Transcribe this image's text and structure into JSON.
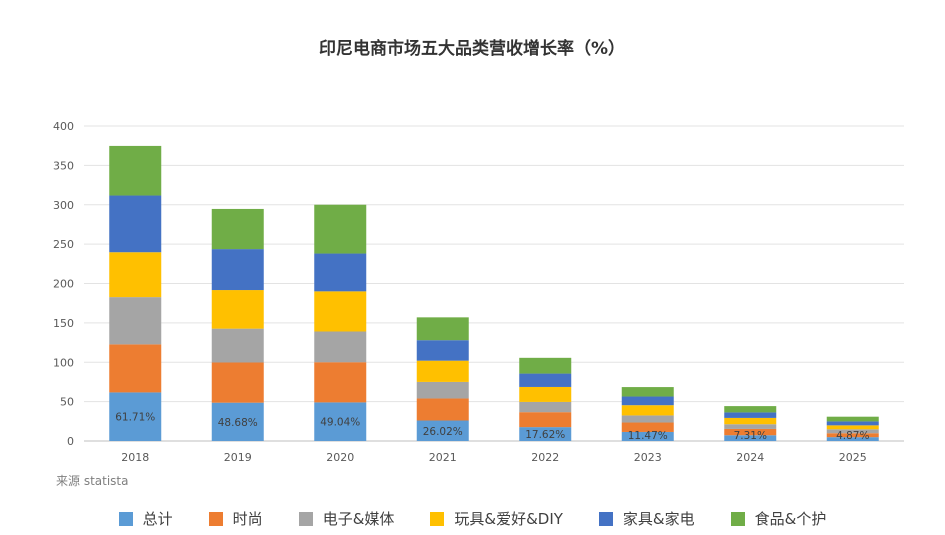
{
  "chart_data": {
    "type": "bar",
    "stacked": true,
    "title": "印尼电商市场五大品类营收增长率（%）",
    "categories": [
      "2018",
      "2019",
      "2020",
      "2021",
      "2022",
      "2023",
      "2024",
      "2025"
    ],
    "series": [
      {
        "name": "总计",
        "color": "#5B9BD5",
        "values": [
          61.71,
          48.68,
          49.04,
          26.02,
          17.62,
          11.47,
          7.31,
          4.87
        ]
      },
      {
        "name": "时尚",
        "color": "#ED7D31",
        "values": [
          61,
          51,
          51,
          28,
          19,
          12,
          8,
          5
        ]
      },
      {
        "name": "电子&媒体",
        "color": "#A5A5A5",
        "values": [
          60,
          43,
          39,
          21,
          13,
          9,
          6,
          5
        ]
      },
      {
        "name": "玩具&爱好&DIY",
        "color": "#FFC000",
        "values": [
          57,
          49,
          51,
          27,
          19,
          13,
          8,
          5
        ]
      },
      {
        "name": "家具&家电",
        "color": "#4472C4",
        "values": [
          72,
          52,
          48,
          26,
          17,
          11,
          7,
          5
        ]
      },
      {
        "name": "食品&个护",
        "color": "#70AD47",
        "values": [
          63,
          51,
          62,
          29,
          20,
          12,
          8,
          6
        ]
      }
    ],
    "data_labels": [
      "61.71%",
      "48.68%",
      "49.04%",
      "26.02%",
      "17.62%",
      "11.47%",
      "7.31%",
      "4.87%"
    ],
    "yticks": [
      "0",
      "50",
      "100",
      "150",
      "200",
      "250",
      "300",
      "350",
      "400"
    ],
    "ylim": [
      0,
      400
    ],
    "xlabel": "",
    "ylabel": "",
    "grid": true,
    "legend_position": "bottom"
  },
  "source_text": "来源 statista"
}
